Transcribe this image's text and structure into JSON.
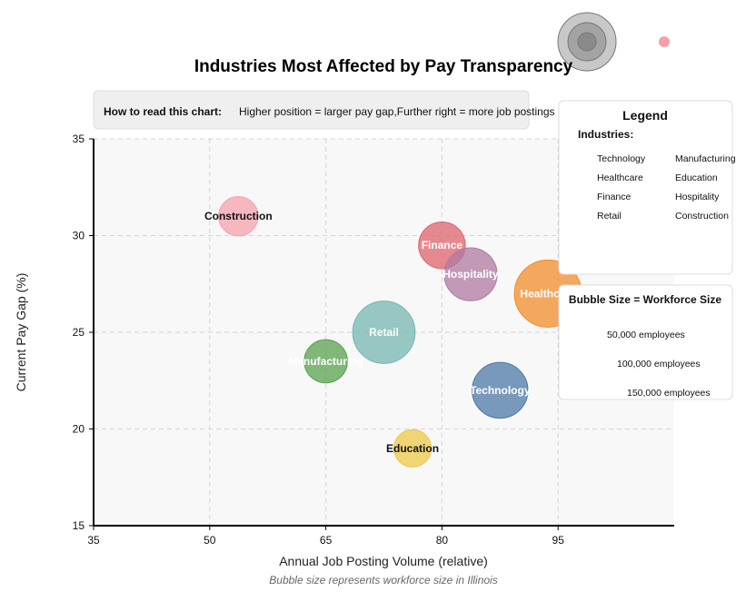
{
  "chart_data": {
    "type": "scatter",
    "title": "Industries Most Affected by Pay Transparency",
    "xlabel": "Annual Job Posting Volume (relative)",
    "ylabel": "Current Pay Gap (%)",
    "caption": "Bubble size represents workforce size in Illinois",
    "xlim": [
      35,
      110
    ],
    "ylim": [
      15,
      35
    ],
    "xticks": [
      35,
      50,
      65,
      80,
      95
    ],
    "yticks": [
      15,
      20,
      25,
      30,
      35
    ],
    "grid": true,
    "points": [
      {
        "label": "Construction",
        "x": 53.7,
        "y": 31.0,
        "size": 50000,
        "color": "#f7a1ad",
        "label_color": "#111111"
      },
      {
        "label": "Finance",
        "x": 80.0,
        "y": 29.5,
        "size": 70000,
        "color": "#e0636e",
        "label_color": "#ffffff"
      },
      {
        "label": "Hospitality",
        "x": 83.7,
        "y": 28.0,
        "size": 90000,
        "color": "#b07aa1",
        "label_color": "#ffffff"
      },
      {
        "label": "Healthcare",
        "x": 93.7,
        "y": 27.0,
        "size": 145000,
        "color": "#f28e2b",
        "label_color": "#ffffff"
      },
      {
        "label": "Retail",
        "x": 72.5,
        "y": 25.0,
        "size": 125000,
        "color": "#76b7b2",
        "label_color": "#ffffff"
      },
      {
        "label": "Manufacturing",
        "x": 65.0,
        "y": 23.5,
        "size": 60000,
        "color": "#59a14f",
        "label_color": "#ffffff"
      },
      {
        "label": "Technology",
        "x": 87.5,
        "y": 22.0,
        "size": 100000,
        "color": "#4e79a7",
        "label_color": "#ffffff"
      },
      {
        "label": "Education",
        "x": 76.2,
        "y": 19.0,
        "size": 45000,
        "color": "#edc948",
        "label_color": "#111111"
      }
    ]
  },
  "howto": {
    "heading": "How to read this chart:",
    "text": "Higher position = larger pay gap,Further right = more job postings"
  },
  "legend": {
    "title": "Legend",
    "subtitle": "Industries:",
    "items": [
      "Technology",
      "Manufacturing",
      "Healthcare",
      "Education",
      "Finance",
      "Hospitality",
      "Retail",
      "Construction"
    ]
  },
  "size_legend": {
    "title": "Bubble Size = Workforce Size",
    "items": [
      "50,000 employees",
      "100,000 employees",
      "150,000 employees"
    ]
  }
}
